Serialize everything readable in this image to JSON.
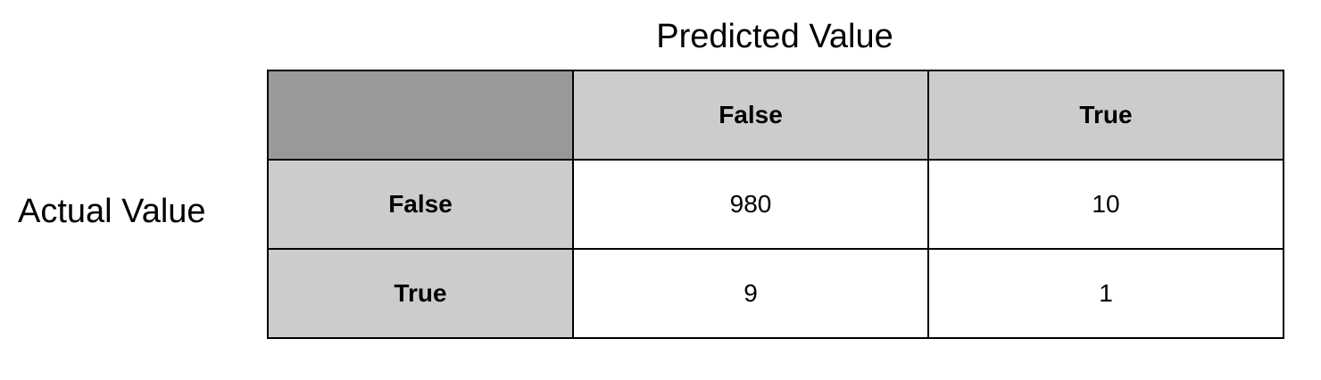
{
  "titles": {
    "predicted": "Predicted Value",
    "actual": "Actual Value"
  },
  "columns": [
    "False",
    "True"
  ],
  "rows": [
    {
      "label": "False",
      "values": [
        "980",
        "10"
      ]
    },
    {
      "label": "True",
      "values": [
        "9",
        "1"
      ]
    }
  ],
  "colors": {
    "corner": "#999999",
    "header": "#cccccc",
    "cell": "#ffffff",
    "border": "#000000"
  }
}
